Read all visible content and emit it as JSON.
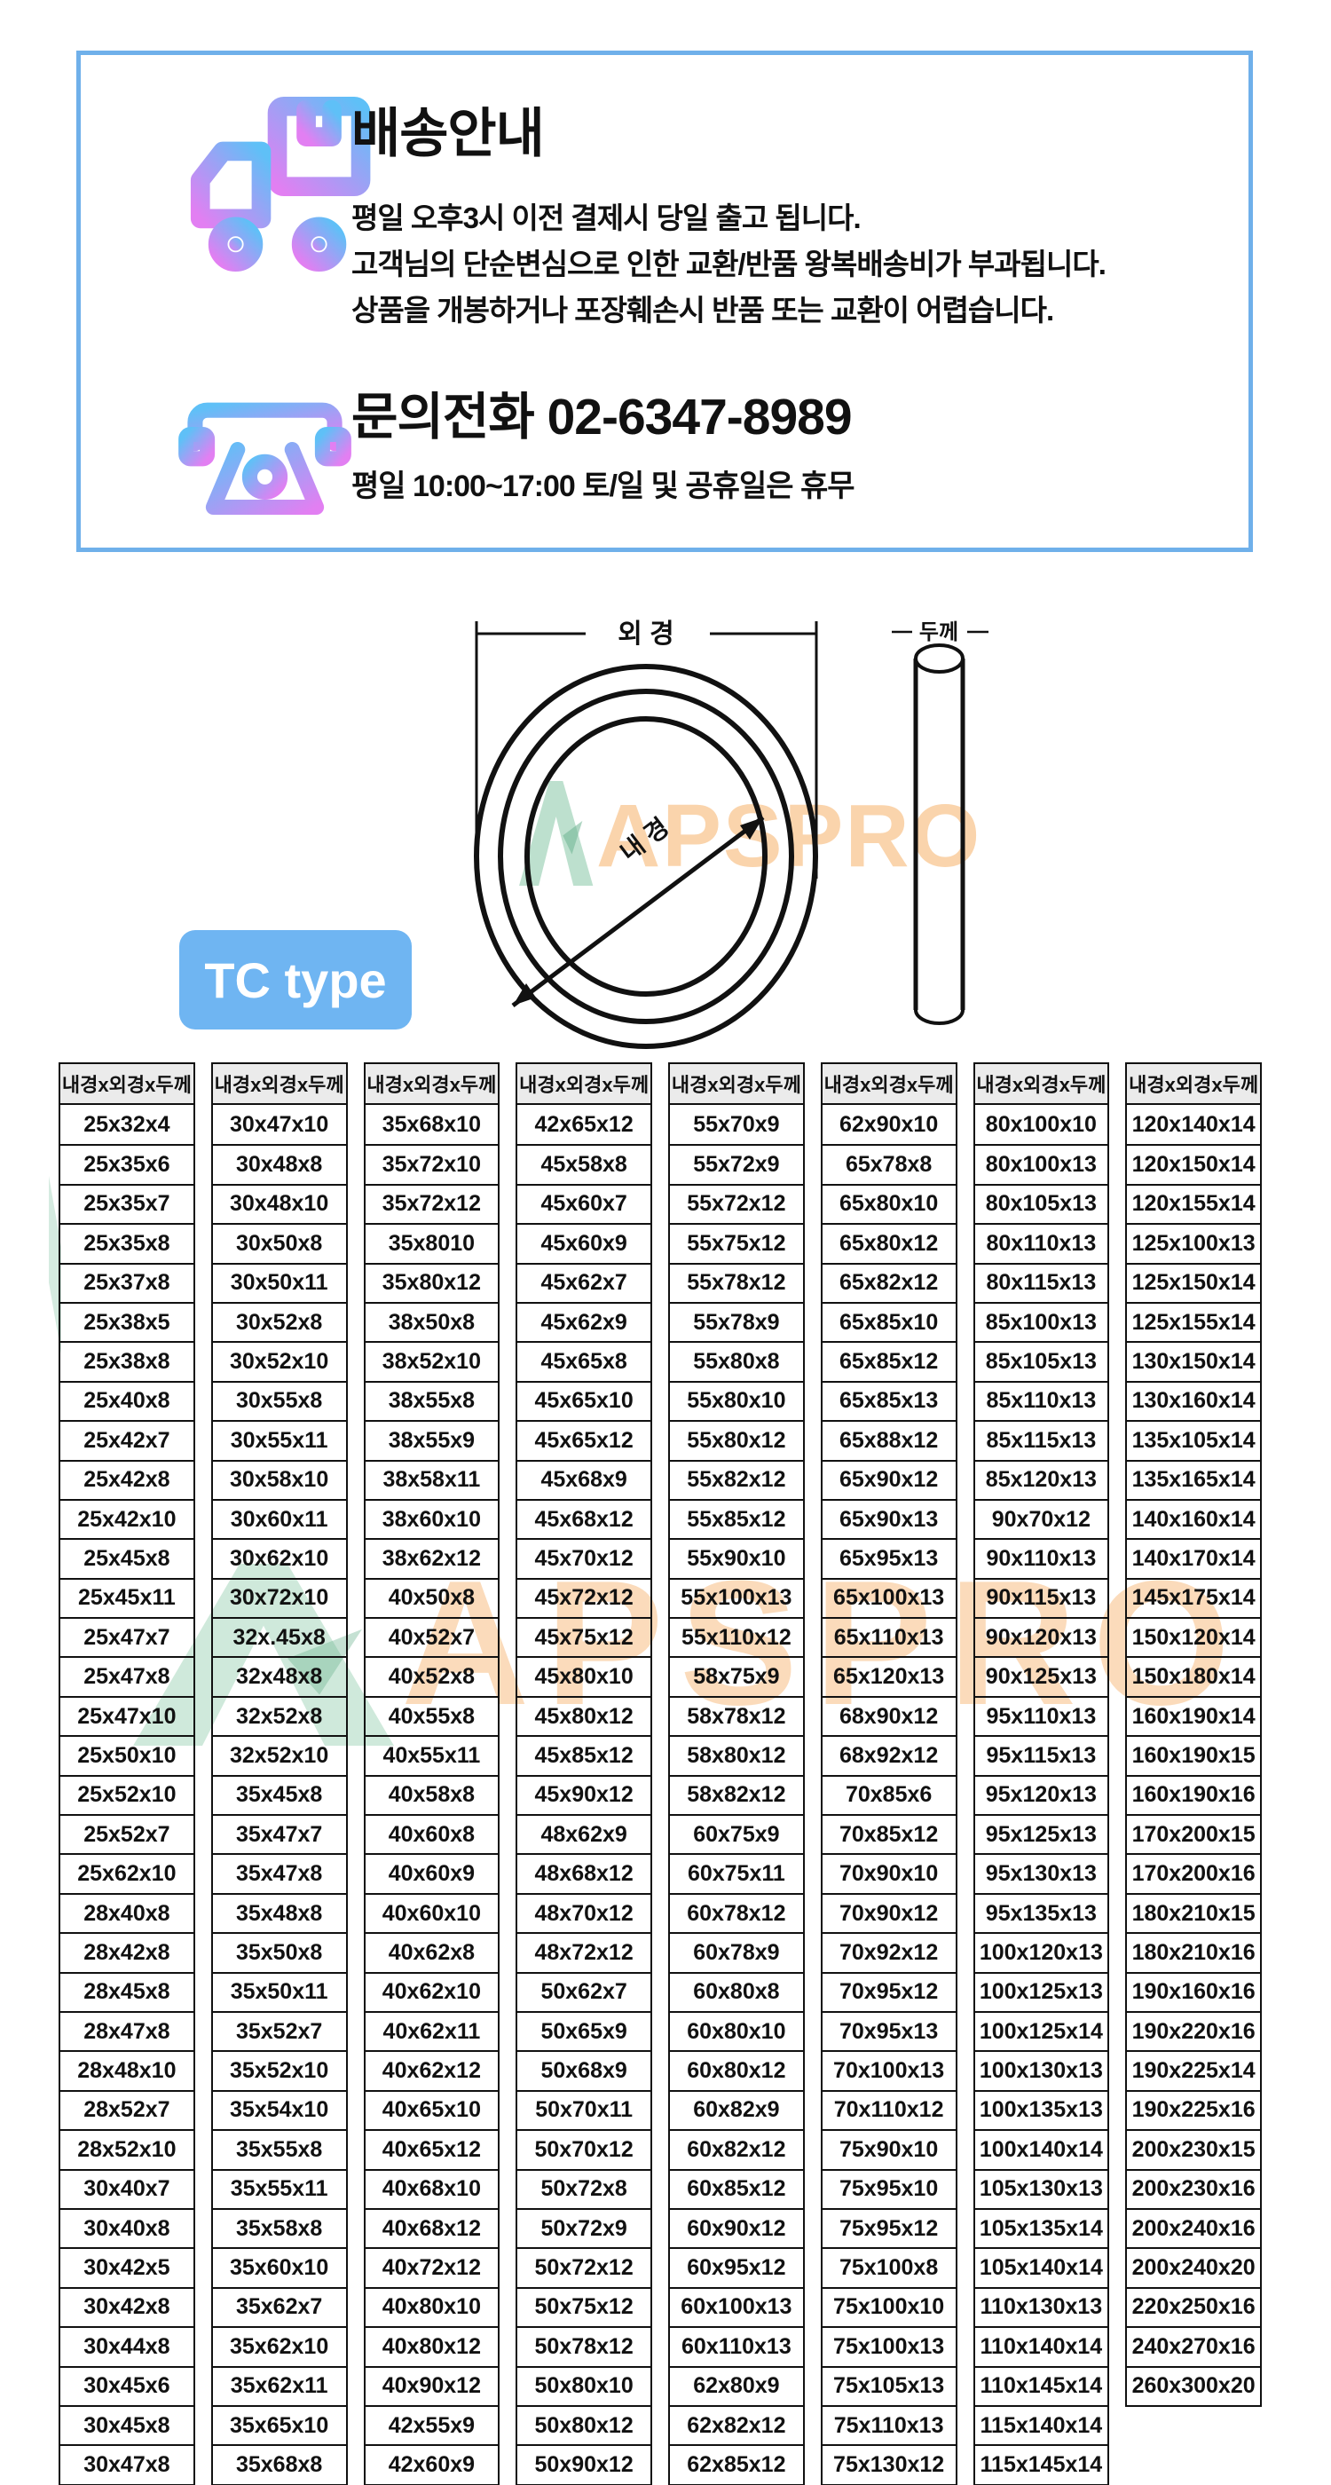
{
  "banner": {
    "border_color": "#6fb0ea",
    "icon_gradient_pink": "#e27ff2",
    "icon_gradient_blue": "#5fc0f7",
    "shipping_title": "배송안내",
    "shipping_lines": [
      "평일 오후3시 이전 결제시 당일 출고 됩니다.",
      "고객님의 단순변심으로 인한 교환/반품 왕복배송비가 부과됩니다.",
      "상품을 개봉하거나 포장훼손시 반품 또는 교환이 어렵습니다."
    ],
    "contact_title": "문의전화  02-6347-8989",
    "contact_hours": "평일 10:00~17:00 토/일 및 공휴일은 휴무"
  },
  "diagram": {
    "outer_diameter_label": "외 경",
    "inner_diameter_label": "내 경",
    "thickness_label": "두께",
    "type_badge": "TC type",
    "badge_color": "#6fb5f2",
    "watermark_text": "APSPRO",
    "watermark_green": "#86c7a6",
    "watermark_orange": "#f6b068"
  },
  "table": {
    "header": "내경x외경x두께",
    "header_bg": "#ebebeb",
    "columns": [
      [
        "25x32x4",
        "25x35x6",
        "25x35x7",
        "25x35x8",
        "25x37x8",
        "25x38x5",
        "25x38x8",
        "25x40x8",
        "25x42x7",
        "25x42x8",
        "25x42x10",
        "25x45x8",
        "25x45x11",
        "25x47x7",
        "25x47x8",
        "25x47x10",
        "25x50x10",
        "25x52x10",
        "25x52x7",
        "25x62x10",
        "28x40x8",
        "28x42x8",
        "28x45x8",
        "28x47x8",
        "28x48x10",
        "28x52x7",
        "28x52x10",
        "30x40x7",
        "30x40x8",
        "30x42x5",
        "30x42x8",
        "30x44x8",
        "30x45x6",
        "30x45x8",
        "30x47x8"
      ],
      [
        "30x47x10",
        "30x48x8",
        "30x48x10",
        "30x50x8",
        "30x50x11",
        "30x52x8",
        "30x52x10",
        "30x55x8",
        "30x55x11",
        "30x58x10",
        "30x60x11",
        "30x62x10",
        "30x72x10",
        "32x.45x8",
        "32x48x8",
        "32x52x8",
        "32x52x10",
        "35x45x8",
        "35x47x7",
        "35x47x8",
        "35x48x8",
        "35x50x8",
        "35x50x11",
        "35x52x7",
        "35x52x10",
        "35x54x10",
        "35x55x8",
        "35x55x11",
        "35x58x8",
        "35x60x10",
        "35x62x7",
        "35x62x10",
        "35x62x11",
        "35x65x10",
        "35x68x8"
      ],
      [
        "35x68x10",
        "35x72x10",
        "35x72x12",
        "35x8010",
        "35x80x12",
        "38x50x8",
        "38x52x10",
        "38x55x8",
        "38x55x9",
        "38x58x11",
        "38x60x10",
        "38x62x12",
        "40x50x8",
        "40x52x7",
        "40x52x8",
        "40x55x8",
        "40x55x11",
        "40x58x8",
        "40x60x8",
        "40x60x9",
        "40x60x10",
        "40x62x8",
        "40x62x10",
        "40x62x11",
        "40x62x12",
        "40x65x10",
        "40x65x12",
        "40x68x10",
        "40x68x12",
        "40x72x12",
        "40x80x10",
        "40x80x12",
        "40x90x12",
        "42x55x9",
        "42x60x9"
      ],
      [
        "42x65x12",
        "45x58x8",
        "45x60x7",
        "45x60x9",
        "45x62x7",
        "45x62x9",
        "45x65x8",
        "45x65x10",
        "45x65x12",
        "45x68x9",
        "45x68x12",
        "45x70x12",
        "45x72x12",
        "45x75x12",
        "45x80x10",
        "45x80x12",
        "45x85x12",
        "45x90x12",
        "48x62x9",
        "48x68x12",
        "48x70x12",
        "48x72x12",
        "50x62x7",
        "50x65x9",
        "50x68x9",
        "50x70x11",
        "50x70x12",
        "50x72x8",
        "50x72x9",
        "50x72x12",
        "50x75x12",
        "50x78x12",
        "50x80x10",
        "50x80x12",
        "50x90x12"
      ],
      [
        "55x70x9",
        "55x72x9",
        "55x72x12",
        "55x75x12",
        "55x78x12",
        "55x78x9",
        "55x80x8",
        "55x80x10",
        "55x80x12",
        "55x82x12",
        "55x85x12",
        "55x90x10",
        "55x100x13",
        "55x110x12",
        "58x75x9",
        "58x78x12",
        "58x80x12",
        "58x82x12",
        "60x75x9",
        "60x75x11",
        "60x78x12",
        "60x78x9",
        "60x80x8",
        "60x80x10",
        "60x80x12",
        "60x82x9",
        "60x82x12",
        "60x85x12",
        "60x90x12",
        "60x95x12",
        "60x100x13",
        "60x110x13",
        "62x80x9",
        "62x82x12",
        "62x85x12"
      ],
      [
        "62x90x10",
        "65x78x8",
        "65x80x10",
        "65x80x12",
        "65x82x12",
        "65x85x10",
        "65x85x12",
        "65x85x13",
        "65x88x12",
        "65x90x12",
        "65x90x13",
        "65x95x13",
        "65x100x13",
        "65x110x13",
        "65x120x13",
        "68x90x12",
        "68x92x12",
        "70x85x6",
        "70x85x12",
        "70x90x10",
        "70x90x12",
        "70x92x12",
        "70x95x12",
        "70x95x13",
        "70x100x13",
        "70x110x12",
        "75x90x10",
        "75x95x10",
        "75x95x12",
        "75x100x8",
        "75x100x10",
        "75x100x13",
        "75x105x13",
        "75x110x13",
        "75x130x12"
      ],
      [
        "80x100x10",
        "80x100x13",
        "80x105x13",
        "80x110x13",
        "80x115x13",
        "85x100x13",
        "85x105x13",
        "85x110x13",
        "85x115x13",
        "85x120x13",
        "90x70x12",
        "90x110x13",
        "90x115x13",
        "90x120x13",
        "90x125x13",
        "95x110x13",
        "95x115x13",
        "95x120x13",
        "95x125x13",
        "95x130x13",
        "95x135x13",
        "100x120x13",
        "100x125x13",
        "100x125x14",
        "100x130x13",
        "100x135x13",
        "100x140x14",
        "105x130x13",
        "105x135x14",
        "105x140x14",
        "110x130x13",
        "110x140x14",
        "110x145x14",
        "115x140x14",
        "115x145x14"
      ],
      [
        "120x140x14",
        "120x150x14",
        "120x155x14",
        "125x100x13",
        "125x150x14",
        "125x155x14",
        "130x150x14",
        "130x160x14",
        "135x105x14",
        "135x165x14",
        "140x160x14",
        "140x170x14",
        "145x175x14",
        "150x120x14",
        "150x180x14",
        "160x190x14",
        "160x190x15",
        "160x190x16",
        "170x200x15",
        "170x200x16",
        "180x210x15",
        "180x210x16",
        "190x160x16",
        "190x220x16",
        "190x225x14",
        "190x225x16",
        "200x230x15",
        "200x230x16",
        "200x240x16",
        "200x240x20",
        "220x250x16",
        "240x270x16",
        "260x300x20"
      ]
    ]
  }
}
